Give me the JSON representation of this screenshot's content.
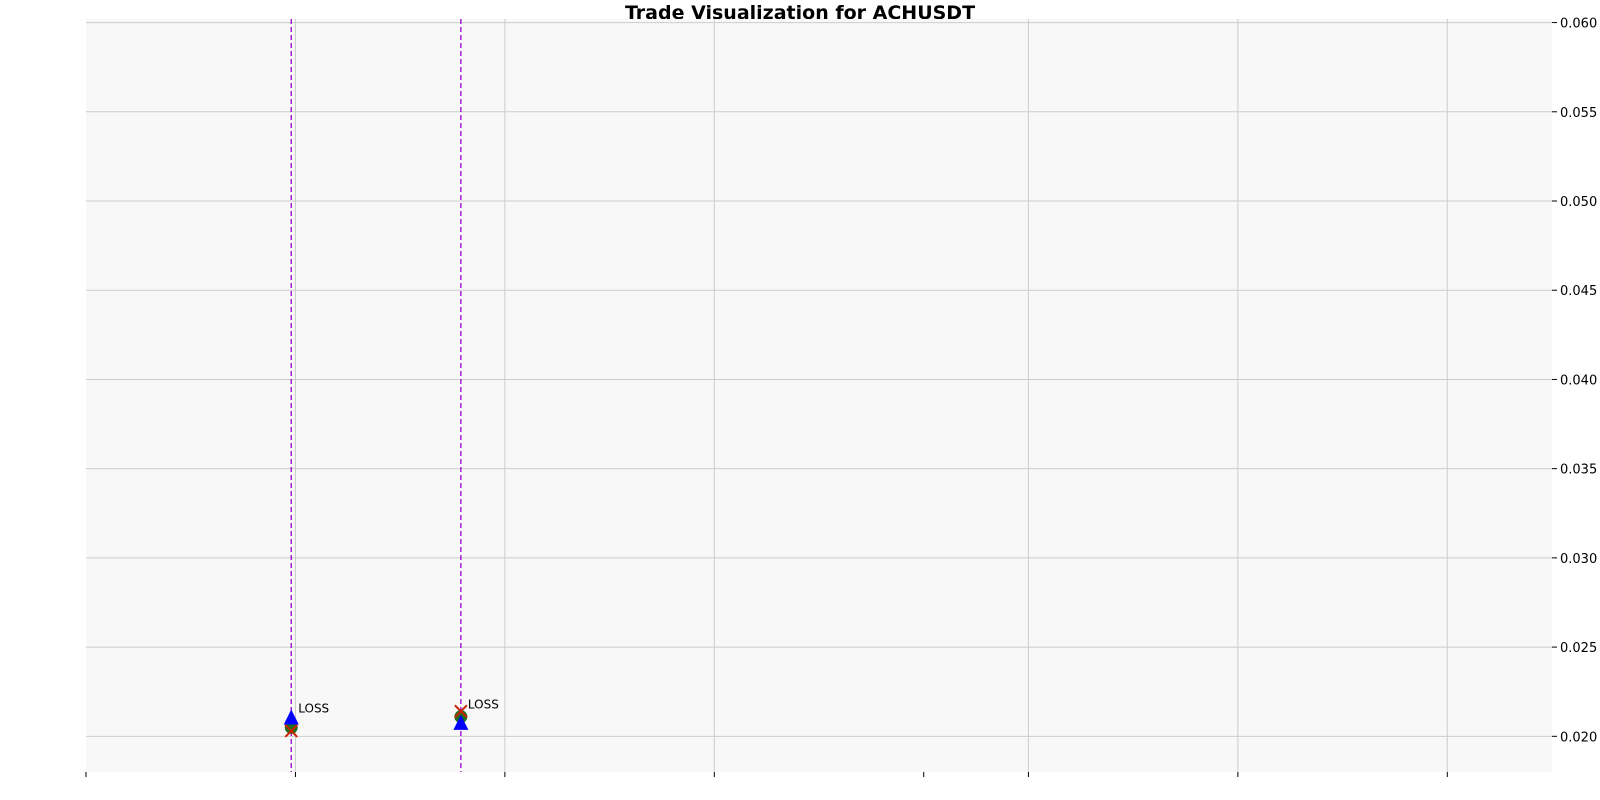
{
  "chart_data": {
    "type": "scatter",
    "title": "Trade Visualization for ACHUSDT",
    "xlabel": "",
    "ylabel": "",
    "x_axis": {
      "range": [
        0,
        7
      ],
      "major_gridlines": [
        0,
        1,
        2,
        3,
        4.5,
        5.5,
        6.5
      ],
      "tick_marks": [
        0,
        1,
        2,
        3,
        4,
        4.5,
        5.5,
        6.5
      ],
      "tick_labels_shown": false
    },
    "y_axis": {
      "position": "right",
      "ylim": [
        0.018,
        0.0602
      ],
      "ticks": [
        0.02,
        0.025,
        0.03,
        0.035,
        0.04,
        0.045,
        0.05,
        0.055,
        0.06
      ],
      "tick_labels": [
        "0.020",
        "0.025",
        "0.030",
        "0.035",
        "0.040",
        "0.045",
        "0.050",
        "0.055",
        "0.060"
      ]
    },
    "grid": true,
    "background_color": "#f8f8f8",
    "grid_color": "#cccccc",
    "trades": [
      {
        "x": 0.98,
        "entry_price": 0.021,
        "exit_price": 0.0203,
        "marker_price": 0.0205,
        "result": "LOSS"
      },
      {
        "x": 1.79,
        "entry_price": 0.0207,
        "exit_price": 0.0214,
        "marker_price": 0.0211,
        "result": "LOSS"
      }
    ],
    "series_styles": {
      "entry": {
        "marker": "triangle-up",
        "color": "#0000ff"
      },
      "exit": {
        "marker": "x",
        "color": "#cc2200"
      },
      "position": {
        "marker": "circle",
        "color": "#1e6e1e"
      },
      "trade_line": {
        "style": "dashed",
        "color": "#9400d3"
      }
    }
  }
}
